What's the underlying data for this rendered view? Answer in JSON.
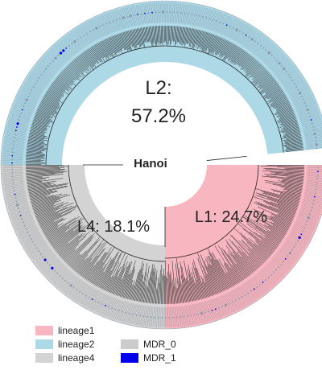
{
  "center_label": "Hanoi",
  "sections": [
    {
      "id": "L2",
      "name": "L2:",
      "pct": "57.2%",
      "fraction": 0.572,
      "color": "#add8e6"
    },
    {
      "id": "L1",
      "name": "L1:",
      "pct": "24.7%",
      "fraction": 0.247,
      "color": "#f8b6c0"
    },
    {
      "id": "L4",
      "name": "L4:",
      "pct": "18.1%",
      "fraction": 0.181,
      "color": "#d3d3d3"
    }
  ],
  "labels": {
    "l2_name": "L2:",
    "l2_pct": "57.2%",
    "l1": "L1: 24.7%",
    "l4": "L4: 18.1%"
  },
  "legend": [
    {
      "label": "lineage1",
      "color": "#f8b6c0"
    },
    {
      "label": "lineage2",
      "color": "#add8e6"
    },
    {
      "label": "lineage4",
      "color": "#d3d3d3"
    },
    {
      "label": "MDR_0",
      "color": "#cccccc"
    },
    {
      "label": "MDR_1",
      "color": "#0000ee"
    }
  ]
}
